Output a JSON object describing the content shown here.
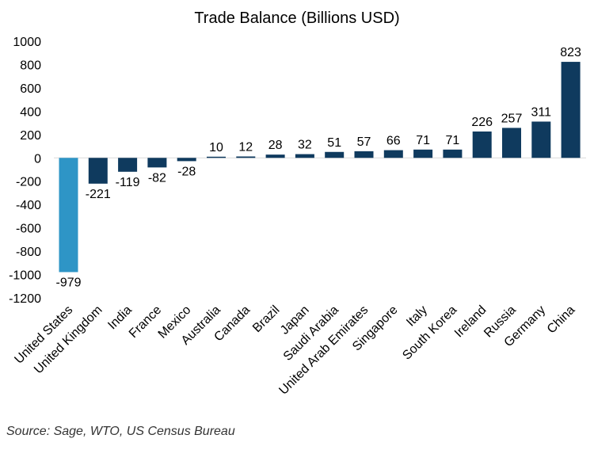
{
  "chart_data": {
    "type": "bar",
    "title": "Trade Balance (Billions USD)",
    "xlabel": "",
    "ylabel": "",
    "ylim": [
      -1200,
      1000
    ],
    "yticks": [
      1000,
      800,
      600,
      400,
      200,
      0,
      -200,
      -400,
      -600,
      -800,
      -1000,
      -1200
    ],
    "grid": false,
    "categories": [
      "United States",
      "United Kingdom",
      "India",
      "France",
      "Mexico",
      "Australia",
      "Canada",
      "Brazil",
      "Japan",
      "Saudi Arabia",
      "United Arab Emirates",
      "Singapore",
      "Italy",
      "South Korea",
      "Ireland",
      "Russia",
      "Germany",
      "China"
    ],
    "values": [
      -979,
      -221,
      -119,
      -82,
      -28,
      10,
      12,
      28,
      32,
      51,
      57,
      66,
      71,
      71,
      226,
      257,
      311,
      823
    ],
    "highlight_index": 0,
    "colors": {
      "default": "#0f3a5e",
      "highlight": "#2e95c6"
    },
    "source": "Source: Sage, WTO, US Census Bureau"
  }
}
